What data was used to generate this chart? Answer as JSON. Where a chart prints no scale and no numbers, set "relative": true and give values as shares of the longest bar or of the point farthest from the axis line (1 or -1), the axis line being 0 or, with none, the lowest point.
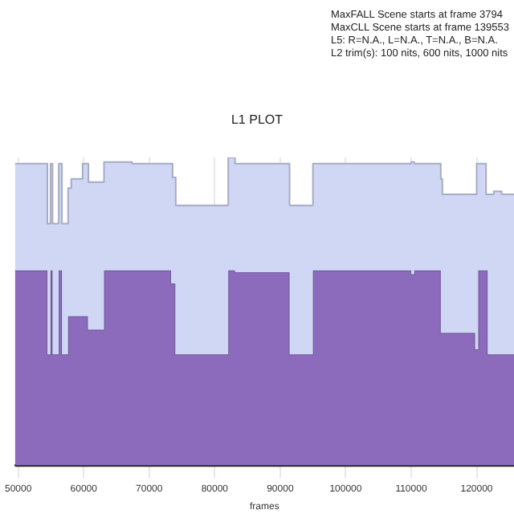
{
  "chart_data": {
    "type": "area",
    "title": "L1 PLOT",
    "xlabel": "frames",
    "annotations": [
      "MaxFALL Scene starts at frame 3794",
      "MaxCLL Scene starts at frame 139553",
      "L5: R=N.A., L=N.A., T=N.A., B=N.A.",
      "L2 trim(s): 100 nits, 600 nits, 1000 nits"
    ],
    "relative": true,
    "grid": "x",
    "tick_labels": "x",
    "xlim": [
      49500,
      125700
    ],
    "xticks": [
      50000,
      60000,
      70000,
      80000,
      90000,
      100000,
      110000,
      120000
    ],
    "series": [
      {
        "color": "#cfd7f5",
        "x": [
          49500,
          54450,
          54450,
          54930,
          54930,
          55240,
          55240,
          56190,
          56190,
          56670,
          56670,
          57620,
          57620,
          58100,
          58100,
          59830,
          59830,
          60720,
          60720,
          63100,
          63100,
          67380,
          67380,
          73570,
          73570,
          74050,
          74050,
          82070,
          82070,
          83100,
          83100,
          91430,
          91430,
          95000,
          95000,
          110000,
          110000,
          110480,
          110480,
          114520,
          114520,
          114760,
          114760,
          120000,
          120000,
          121430,
          121430,
          122620,
          122620,
          123810,
          123810,
          125700
        ],
        "values": [
          0.98,
          0.98,
          0.785,
          0.785,
          0.98,
          0.98,
          0.785,
          0.785,
          0.98,
          0.98,
          0.785,
          0.785,
          0.9,
          0.9,
          0.93,
          0.93,
          0.98,
          0.98,
          0.92,
          0.92,
          0.985,
          0.985,
          0.98,
          0.98,
          0.935,
          0.935,
          0.844,
          0.844,
          1,
          1,
          0.98,
          0.98,
          0.844,
          0.844,
          0.98,
          0.98,
          0.985,
          0.985,
          0.98,
          0.98,
          0.93,
          0.93,
          0.88,
          0.88,
          0.98,
          0.98,
          0.88,
          0.88,
          0.89,
          0.89,
          0.88,
          0.88
        ]
      },
      {
        "color": "#8c6bbd",
        "x": [
          49500,
          54450,
          54450,
          54930,
          54930,
          55240,
          55240,
          56190,
          56190,
          56670,
          56670,
          57620,
          57620,
          60640,
          60640,
          63100,
          63100,
          73330,
          73330,
          73980,
          73980,
          82070,
          82070,
          83100,
          83100,
          91430,
          91430,
          95000,
          95000,
          110000,
          110000,
          110480,
          110480,
          114520,
          114520,
          119760,
          119760,
          120240,
          120240,
          121670,
          121670,
          125700
        ],
        "values": [
          0.633,
          0.633,
          0.36,
          0.36,
          0.633,
          0.633,
          0.36,
          0.36,
          0.633,
          0.633,
          0.36,
          0.36,
          0.484,
          0.484,
          0.44,
          0.44,
          0.633,
          0.633,
          0.59,
          0.59,
          0.36,
          0.36,
          0.633,
          0.633,
          0.627,
          0.627,
          0.36,
          0.36,
          0.633,
          0.633,
          0.62,
          0.62,
          0.633,
          0.633,
          0.43,
          0.43,
          0.376,
          0.376,
          0.633,
          0.633,
          0.36,
          0.36
        ]
      }
    ]
  }
}
